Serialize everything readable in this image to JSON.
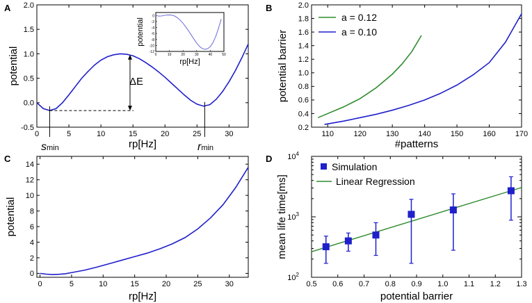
{
  "chart_data": [
    {
      "panel": "A",
      "type": "line",
      "xlabel": "rp[Hz]",
      "ylabel": "potential",
      "xlim": [
        0,
        33
      ],
      "ylim": [
        -0.5,
        2.0
      ],
      "xticks": [
        0,
        5,
        10,
        15,
        20,
        25,
        30
      ],
      "yticks": [
        "-0.5",
        "0.0",
        "0.5",
        "1.0",
        "1.5",
        "2.0"
      ],
      "series": [
        {
          "name": "potential",
          "color": "#1f1fcc",
          "x": [
            0,
            1,
            2,
            3,
            4,
            5,
            6,
            7,
            8,
            9,
            10,
            11,
            12,
            13,
            14,
            15,
            16,
            17,
            18,
            19,
            20,
            21,
            22,
            23,
            24,
            25,
            26,
            27,
            28,
            29,
            30,
            31,
            32,
            33
          ],
          "y": [
            0.0,
            -0.12,
            -0.16,
            -0.12,
            0.0,
            0.16,
            0.33,
            0.5,
            0.64,
            0.77,
            0.87,
            0.94,
            0.98,
            1.0,
            0.99,
            0.96,
            0.9,
            0.82,
            0.73,
            0.63,
            0.52,
            0.4,
            0.28,
            0.16,
            0.05,
            -0.03,
            -0.07,
            -0.04,
            0.07,
            0.23,
            0.43,
            0.66,
            0.92,
            1.2
          ]
        }
      ],
      "annotations": {
        "delta_label": "ΔE",
        "s_min_main": "s",
        "s_min_sub": "min",
        "s_min_x": 2,
        "r_min_main": "r",
        "r_min_sub": "min",
        "r_min_x": 26.2,
        "reference_level": -0.16,
        "barrier_x": 14,
        "barrier_top": 0.98
      },
      "inset": {
        "ylabel": "potential",
        "xlabel": "rp[Hz]",
        "xlim": [
          0,
          50
        ],
        "ylim": [
          -12,
          1
        ],
        "xticks": [
          0,
          10,
          20,
          30,
          40,
          50
        ],
        "yticks": [
          0,
          -2,
          -4,
          -6,
          -8,
          -10,
          -12
        ],
        "series": [
          {
            "name": "potential",
            "color": "#6a6ad8",
            "x": [
              0,
              2,
              4,
              6,
              8,
              10,
              12,
              14,
              16,
              18,
              20,
              22,
              24,
              26,
              28,
              30,
              32,
              34,
              36,
              38,
              40,
              42,
              44,
              46,
              48
            ],
            "y": [
              0,
              -0.2,
              -0.15,
              0,
              0.15,
              0.2,
              0.1,
              -0.2,
              -0.8,
              -1.6,
              -2.6,
              -3.8,
              -5.1,
              -6.5,
              -7.9,
              -9.2,
              -10.3,
              -11.0,
              -11.3,
              -11.1,
              -10.4,
              -9.0,
              -7.0,
              -4.3,
              -1.2
            ]
          }
        ]
      }
    },
    {
      "panel": "B",
      "type": "line",
      "xlabel": "#patterns",
      "ylabel": "potential  barrier",
      "xlim": [
        105,
        170
      ],
      "ylim": [
        0.2,
        2.0
      ],
      "xticks": [
        110,
        120,
        130,
        140,
        150,
        160,
        170
      ],
      "yticks": [
        "0.2",
        "0.4",
        "0.6",
        "0.8",
        "1.0",
        "1.2",
        "1.4",
        "1.6",
        "1.8",
        "2.0"
      ],
      "series": [
        {
          "name": "a = 0.12",
          "color": "#2e8b2e",
          "x": [
            107,
            110,
            115,
            120,
            125,
            130,
            133,
            136,
            139
          ],
          "y": [
            0.34,
            0.4,
            0.5,
            0.62,
            0.78,
            0.98,
            1.13,
            1.31,
            1.55
          ]
        },
        {
          "name": "a = 0.10",
          "color": "#1f1fcc",
          "x": [
            109,
            115,
            120,
            125,
            130,
            135,
            140,
            145,
            150,
            155,
            160,
            165,
            170
          ],
          "y": [
            0.24,
            0.29,
            0.34,
            0.39,
            0.45,
            0.52,
            0.6,
            0.7,
            0.82,
            0.97,
            1.15,
            1.45,
            1.87
          ]
        }
      ]
    },
    {
      "panel": "C",
      "type": "line",
      "xlabel": "rp[Hz]",
      "ylabel": "potential",
      "xlim": [
        -0.5,
        33
      ],
      "ylim": [
        -0.5,
        15
      ],
      "xticks": [
        0,
        5,
        10,
        15,
        20,
        25,
        30
      ],
      "yticks": [
        "0",
        "2",
        "4",
        "6",
        "8",
        "10",
        "12",
        "14"
      ],
      "series": [
        {
          "name": "potential",
          "color": "#1f1fcc",
          "x": [
            0,
            1,
            2,
            3,
            4,
            5,
            7,
            9,
            11,
            13,
            15,
            17,
            19,
            21,
            23,
            25,
            27,
            29,
            31,
            33
          ],
          "y": [
            0,
            -0.1,
            -0.15,
            -0.12,
            -0.05,
            0.1,
            0.4,
            0.8,
            1.25,
            1.7,
            2.15,
            2.6,
            3.15,
            3.8,
            4.6,
            5.7,
            7.1,
            8.8,
            11.0,
            13.6
          ]
        }
      ]
    },
    {
      "panel": "D",
      "type": "scatter",
      "xlabel": "potential barrier",
      "ylabel": "mean life time[ms]",
      "xlim": [
        0.5,
        1.3
      ],
      "ylim_log10": [
        2,
        4
      ],
      "xticks": [
        "0.5",
        "0.6",
        "0.7",
        "0.8",
        "0.9",
        "1.0",
        "1.1",
        "1.2",
        "1.3"
      ],
      "ytick_base": "10",
      "ytick_exps": [
        "2",
        "3",
        "4"
      ],
      "series": [
        {
          "name": "Simulation",
          "color": "#1f1fcc",
          "x": [
            0.555,
            0.64,
            0.745,
            0.88,
            1.04,
            1.26
          ],
          "y": [
            320,
            400,
            500,
            1100,
            1300,
            2700
          ],
          "err_low": [
            170,
            270,
            230,
            170,
            280,
            880
          ],
          "err_high": [
            480,
            540,
            800,
            1950,
            2400,
            4600
          ]
        },
        {
          "name": "Linear Regression",
          "color": "#2e8b2e",
          "x": [
            0.5,
            1.3
          ],
          "y": [
            265,
            3050
          ]
        }
      ]
    }
  ]
}
